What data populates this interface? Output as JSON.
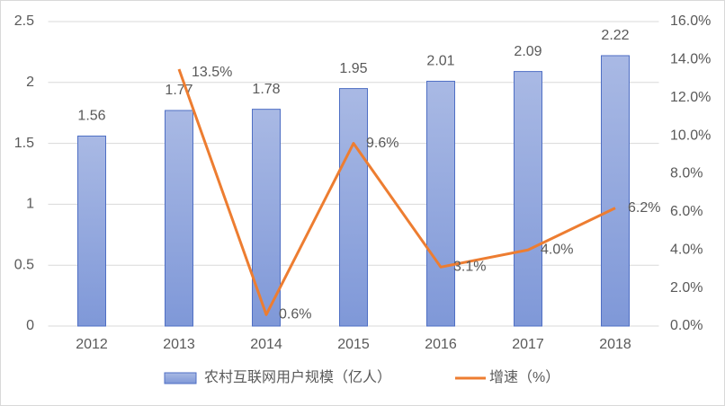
{
  "chart_data": {
    "type": "bar",
    "categories": [
      "2012",
      "2013",
      "2014",
      "2015",
      "2016",
      "2017",
      "2018"
    ],
    "series": [
      {
        "name": "农村互联网用户规模（亿人）",
        "color": "#8fa5dd",
        "values": [
          1.56,
          1.77,
          1.78,
          1.95,
          2.01,
          2.09,
          2.22
        ]
      },
      {
        "name": "增速（%）",
        "color": "#ed7d31",
        "type": "line",
        "axis": "y2",
        "values": [
          null,
          13.5,
          0.6,
          9.6,
          3.1,
          4.0,
          6.2
        ],
        "value_labels": [
          null,
          "13.5%",
          "0.6%",
          "9.6%",
          "3.1%",
          "4.0%",
          "6.2%"
        ]
      }
    ],
    "ylim": [
      0,
      2.5
    ],
    "yticks": [
      0,
      0.5,
      1,
      1.5,
      2,
      2.5
    ],
    "y2lim": [
      0,
      16
    ],
    "y2ticks": [
      {
        "value": 0,
        "label": "0.0%"
      },
      {
        "value": 2,
        "label": "2.0%"
      },
      {
        "value": 4,
        "label": "4.0%"
      },
      {
        "value": 6,
        "label": "6.0%"
      },
      {
        "value": 8,
        "label": "8.0%"
      },
      {
        "value": 10,
        "label": "10.0%"
      },
      {
        "value": 12,
        "label": "12.0%"
      },
      {
        "value": 14,
        "label": "14.0%"
      },
      {
        "value": 16,
        "label": "16.0%"
      }
    ],
    "grid": true,
    "legend": "bottom"
  }
}
